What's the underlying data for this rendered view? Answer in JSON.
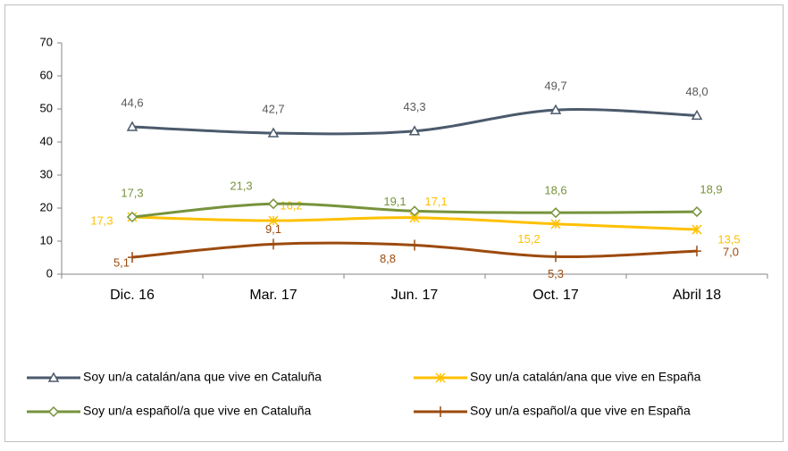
{
  "chart_data": {
    "type": "line",
    "categories": [
      "Dic. 16",
      "Mar. 17",
      "Jun. 17",
      "Oct. 17",
      "Abril 18"
    ],
    "series": [
      {
        "name": "Soy un/a catalán/ana que vive en Cataluña",
        "color": "#4b5a6c",
        "marker": "triangle",
        "values": [
          44.6,
          42.7,
          43.3,
          49.7,
          48.0
        ],
        "value_labels": [
          "44,6",
          "42,7",
          "43,3",
          "49,7",
          "48,0"
        ]
      },
      {
        "name": "Soy un/a catalán/ana que vive en España",
        "color": "#ffc000",
        "marker": "asterisk",
        "values": [
          17.3,
          16.2,
          17.1,
          15.2,
          13.5
        ],
        "value_labels": [
          "17,3",
          "16,2",
          "17,1",
          "15,2",
          "13,5"
        ]
      },
      {
        "name": "Soy un/a español/a que vive en Cataluña",
        "color": "#77933c",
        "marker": "diamond",
        "values": [
          17.3,
          21.3,
          19.1,
          18.6,
          18.9
        ],
        "value_labels": [
          "17,3",
          "21,3",
          "19,1",
          "18,6",
          "18,9"
        ]
      },
      {
        "name": "Soy un/a español/a que vive en España",
        "color": "#9c4a0e",
        "marker": "plus",
        "values": [
          5.1,
          9.1,
          8.8,
          5.3,
          7.0
        ],
        "value_labels": [
          "5,1",
          "9,1",
          "8,8",
          "5,3",
          "7,0"
        ]
      }
    ],
    "ylim": [
      0,
      70
    ],
    "yticks": [
      0,
      10,
      20,
      30,
      40,
      50,
      60,
      70
    ],
    "grid": false,
    "legend": "bottom"
  }
}
